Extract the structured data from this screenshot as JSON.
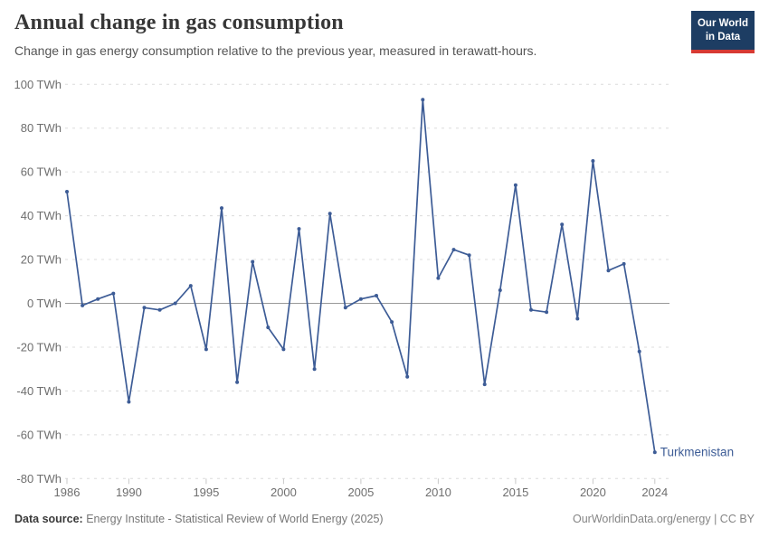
{
  "header": {
    "title": "Annual change in gas consumption",
    "subtitle": "Change in gas energy consumption relative to the previous year, measured in terawatt-hours.",
    "logo_line1": "Our World",
    "logo_line2": "in Data",
    "logo_bg": "#1d3d63",
    "logo_accent": "#d73a33"
  },
  "chart_data": {
    "type": "line",
    "title": "Annual change in gas consumption",
    "ylabel": "",
    "xlabel": "",
    "unit": "TWh",
    "xlim": [
      1986,
      2024
    ],
    "ylim": [
      -80,
      100
    ],
    "grid": "horizontal-dashed",
    "zero_line": true,
    "legend_position": "end-of-line-label",
    "x_ticks": [
      1986,
      1990,
      1995,
      2000,
      2005,
      2010,
      2015,
      2020,
      2024
    ],
    "y_ticks": [
      100,
      80,
      60,
      40,
      20,
      0,
      -20,
      -40,
      -60,
      -80
    ],
    "y_tick_suffix": " TWh",
    "series": [
      {
        "name": "Turkmenistan",
        "color": "#3d5c96",
        "x": [
          1986,
          1987,
          1988,
          1989,
          1990,
          1991,
          1992,
          1993,
          1994,
          1995,
          1996,
          1997,
          1998,
          1999,
          2000,
          2001,
          2002,
          2003,
          2004,
          2005,
          2006,
          2007,
          2008,
          2009,
          2010,
          2011,
          2012,
          2013,
          2014,
          2015,
          2016,
          2017,
          2018,
          2019,
          2020,
          2021,
          2022,
          2023,
          2024
        ],
        "values": [
          51,
          -1,
          2,
          4.5,
          -45,
          -2,
          -3,
          0,
          8,
          -21,
          43.5,
          -36,
          19,
          -11,
          -21,
          34,
          -30,
          41,
          -2,
          2,
          3.5,
          -8.5,
          -33.5,
          93,
          11.5,
          24.5,
          22,
          -37,
          6,
          54,
          -3,
          -4,
          36,
          -7,
          65,
          15,
          18,
          -22,
          -68
        ]
      }
    ]
  },
  "footer": {
    "source_label": "Data source:",
    "source_text": " Energy Institute - Statistical Review of World Energy (2025)",
    "right_text": "OurWorldinData.org/energy | CC BY"
  }
}
